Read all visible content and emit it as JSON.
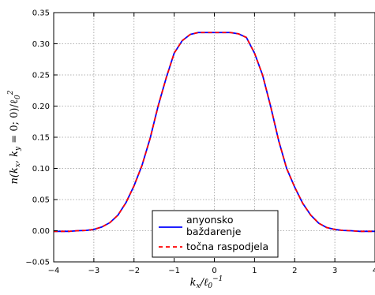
{
  "chart_data": {
    "type": "line",
    "title": "",
    "xlabel": "k_x/ℓ₀⁻¹",
    "ylabel": "n(k_x, k_y = 0; 0)/ℓ₀²",
    "xlim": [
      -4,
      4
    ],
    "ylim": [
      -0.05,
      0.35
    ],
    "xticks": [
      -4,
      -3,
      -2,
      -1,
      0,
      1,
      2,
      3,
      4
    ],
    "yticks": [
      -0.05,
      0.0,
      0.05,
      0.1,
      0.15,
      0.2,
      0.25,
      0.3,
      0.35
    ],
    "xtick_labels": [
      "−4",
      "−3",
      "−2",
      "−1",
      "0",
      "1",
      "2",
      "3",
      "4"
    ],
    "ytick_labels": [
      "−0.05",
      "0.00",
      "0.05",
      "0.10",
      "0.15",
      "0.20",
      "0.25",
      "0.30",
      "0.35"
    ],
    "grid": true,
    "legend_position": "bottom-center",
    "series": [
      {
        "name": "anyonsko baždarenje",
        "color": "#0000ff",
        "style": "solid",
        "x": [
          -4.0,
          -3.8,
          -3.6,
          -3.4,
          -3.2,
          -3.0,
          -2.8,
          -2.6,
          -2.4,
          -2.2,
          -2.0,
          -1.8,
          -1.6,
          -1.4,
          -1.2,
          -1.0,
          -0.8,
          -0.6,
          -0.4,
          -0.2,
          0.0,
          0.2,
          0.4,
          0.6,
          0.8,
          1.0,
          1.2,
          1.4,
          1.6,
          1.8,
          2.0,
          2.2,
          2.4,
          2.6,
          2.8,
          3.0,
          3.2,
          3.4,
          3.6,
          3.8,
          4.0
        ],
        "y": [
          -0.001,
          -0.001,
          -0.001,
          0.0,
          0.0005,
          0.002,
          0.006,
          0.013,
          0.025,
          0.045,
          0.072,
          0.105,
          0.148,
          0.2,
          0.245,
          0.285,
          0.305,
          0.315,
          0.318,
          0.318,
          0.318,
          0.318,
          0.318,
          0.316,
          0.31,
          0.285,
          0.25,
          0.2,
          0.145,
          0.1,
          0.07,
          0.044,
          0.025,
          0.012,
          0.005,
          0.002,
          0.0005,
          0.0,
          -0.001,
          -0.001,
          -0.001
        ]
      },
      {
        "name": "točna raspodjela",
        "color": "#ff0000",
        "style": "dashed",
        "x": [
          -4.0,
          -3.8,
          -3.6,
          -3.4,
          -3.2,
          -3.0,
          -2.8,
          -2.6,
          -2.4,
          -2.2,
          -2.0,
          -1.8,
          -1.6,
          -1.4,
          -1.2,
          -1.0,
          -0.8,
          -0.6,
          -0.4,
          -0.2,
          0.0,
          0.2,
          0.4,
          0.6,
          0.8,
          1.0,
          1.2,
          1.4,
          1.6,
          1.8,
          2.0,
          2.2,
          2.4,
          2.6,
          2.8,
          3.0,
          3.2,
          3.4,
          3.6,
          3.8,
          4.0
        ],
        "y": [
          -0.001,
          -0.001,
          -0.001,
          0.0,
          0.0005,
          0.002,
          0.006,
          0.013,
          0.025,
          0.045,
          0.072,
          0.105,
          0.148,
          0.2,
          0.245,
          0.285,
          0.305,
          0.315,
          0.318,
          0.318,
          0.318,
          0.318,
          0.318,
          0.316,
          0.31,
          0.285,
          0.25,
          0.2,
          0.145,
          0.1,
          0.07,
          0.044,
          0.025,
          0.012,
          0.005,
          0.002,
          0.0005,
          0.0,
          -0.001,
          -0.001,
          -0.001
        ]
      }
    ],
    "legend": {
      "entries": [
        {
          "label_lines": [
            "anyonsko",
            "baždarenje"
          ]
        },
        {
          "label_lines": [
            "točna raspodjela"
          ]
        }
      ]
    }
  }
}
